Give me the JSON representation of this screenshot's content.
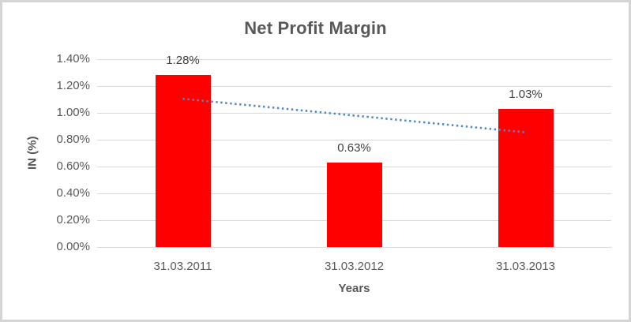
{
  "chart_data": {
    "type": "bar",
    "title": "Net Profit Margin",
    "xlabel": "Years",
    "ylabel": "IN (%)",
    "categories": [
      "31.03.2011",
      "31.03.2012",
      "31.03.2013"
    ],
    "values": [
      1.28,
      0.63,
      1.03
    ],
    "data_labels": [
      "1.28%",
      "0.63%",
      "1.03%"
    ],
    "ytick_labels": [
      "0.00%",
      "0.20%",
      "0.40%",
      "0.60%",
      "0.80%",
      "1.00%",
      "1.20%",
      "1.40%"
    ],
    "ytick_step": 0.2,
    "ylim": [
      0,
      1.4
    ],
    "grid": true,
    "legend": "none",
    "bar_color": "#ff0000",
    "gridline_color": "#d9d9d9",
    "text_color": "#595959",
    "trendline": {
      "kind": "linear",
      "line_style": "dotted",
      "color": "#4e87c8",
      "start_value": 1.105,
      "end_value": 0.855
    }
  }
}
